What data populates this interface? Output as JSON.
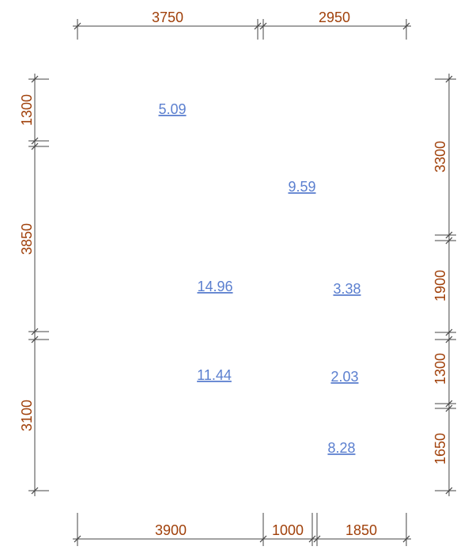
{
  "colors": {
    "dimension_text": "#a0400a",
    "area_text": "#5b7fcf",
    "line": "#444444"
  },
  "dimensions": {
    "top": [
      "3750",
      "2950"
    ],
    "bottom": [
      "3900",
      "1000",
      "1850"
    ],
    "left": [
      "1300",
      "3850",
      "3100"
    ],
    "right": [
      "3300",
      "1900",
      "1300",
      "1650"
    ]
  },
  "room_areas": [
    "5.09",
    "9.59",
    "14.96",
    "3.38",
    "11.44",
    "2.03",
    "8.28"
  ]
}
